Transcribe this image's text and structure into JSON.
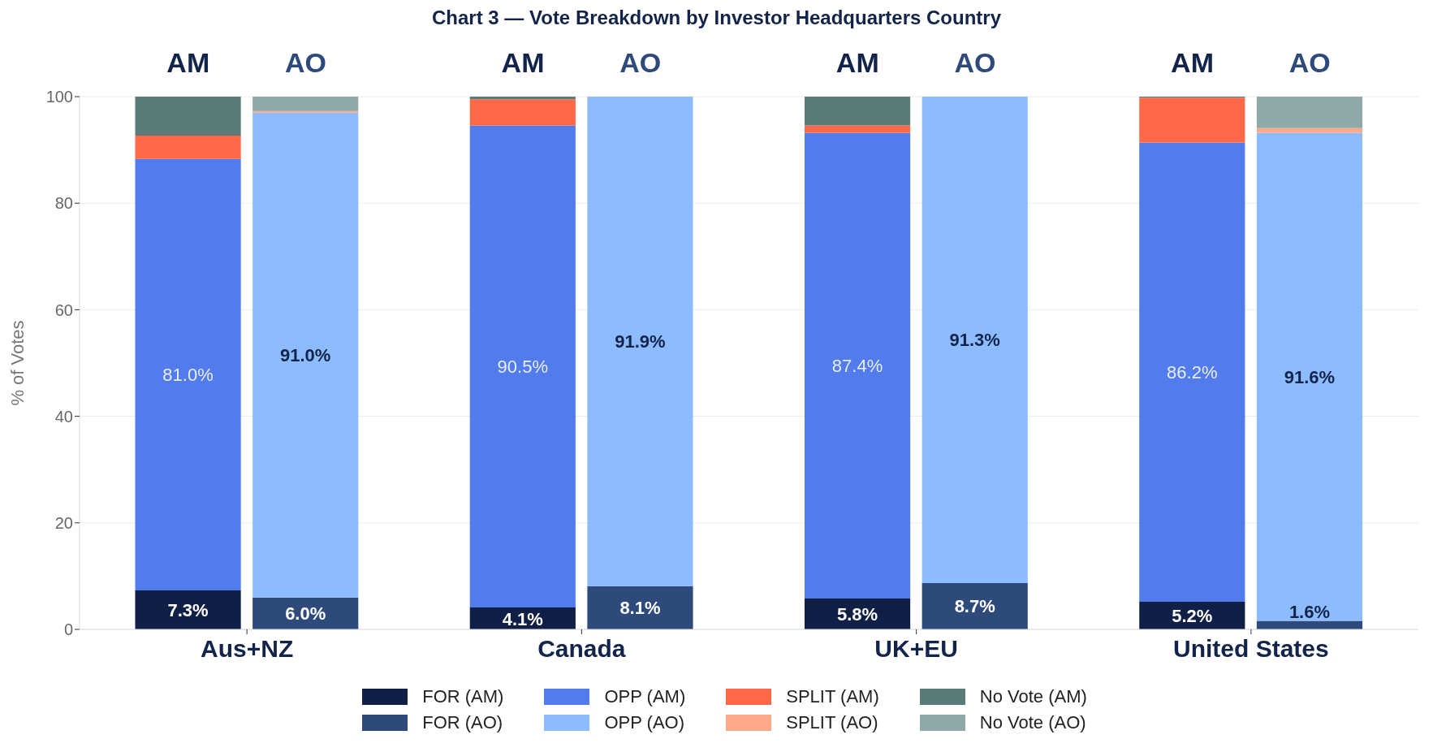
{
  "chart_data": {
    "type": "bar",
    "title": "Chart 3 — Vote Breakdown by Investor Headquarters Country",
    "categories": [
      "AM",
      "AO",
      "AM",
      "AO",
      "AM",
      "AO",
      "AM",
      "AO"
    ],
    "annotations": [
      "Aus+NZ",
      "Canada",
      "UK+EU",
      "United States"
    ],
    "ylabel": "% of Votes",
    "stacked": true,
    "series": [
      {
        "name": "FOR (AM)",
        "color": "#0f1f45",
        "values": [
          7.3,
          null,
          4.1,
          null,
          5.8,
          null,
          5.2,
          null
        ],
        "value_labels": [
          "7.3%",
          null,
          "4.1%",
          null,
          "5.8%",
          null,
          "5.2%",
          null
        ]
      },
      {
        "name": "FOR (AO)",
        "color": "#2e4a7b",
        "values": [
          null,
          6.0,
          null,
          8.1,
          null,
          8.7,
          null,
          1.6
        ],
        "value_labels": [
          null,
          "6.0%",
          null,
          "8.1%",
          null,
          "8.7%",
          null,
          "1.6%"
        ]
      },
      {
        "name": "OPP (AM)",
        "color": "#527beb",
        "values": [
          81.0,
          null,
          90.5,
          null,
          87.4,
          null,
          86.2,
          null
        ],
        "value_labels": [
          "81.0%",
          null,
          "90.5%",
          null,
          "87.4%",
          null,
          "86.2%",
          null
        ]
      },
      {
        "name": "OPP (AO)",
        "color": "#8cbcff",
        "values": [
          null,
          91.0,
          null,
          91.9,
          null,
          91.3,
          null,
          91.6
        ],
        "value_labels": [
          null,
          "91.0%",
          null,
          "91.9%",
          null,
          "91.3%",
          null,
          "91.6%"
        ]
      },
      {
        "name": "SPLIT (AM)",
        "color": "#ff6948",
        "values": [
          4.4,
          null,
          4.9,
          null,
          1.4,
          null,
          8.4,
          null
        ]
      },
      {
        "name": "SPLIT (AO)",
        "color": "#ffa98a",
        "values": [
          null,
          0.3,
          null,
          0,
          null,
          0,
          null,
          0.9
        ]
      },
      {
        "name": "No Vote (AM)",
        "color": "#5a7b77",
        "values": [
          7.3,
          null,
          0.5,
          null,
          5.4,
          null,
          0.2,
          null
        ]
      },
      {
        "name": "No Vote (AO)",
        "color": "#8ea9a8",
        "values": [
          null,
          2.7,
          null,
          0,
          null,
          0,
          null,
          5.9
        ]
      }
    ],
    "ylim": [
      0,
      100
    ],
    "yticks": [
      0,
      20,
      40,
      60,
      80,
      100
    ],
    "grid": "y",
    "legend": "bottom"
  }
}
